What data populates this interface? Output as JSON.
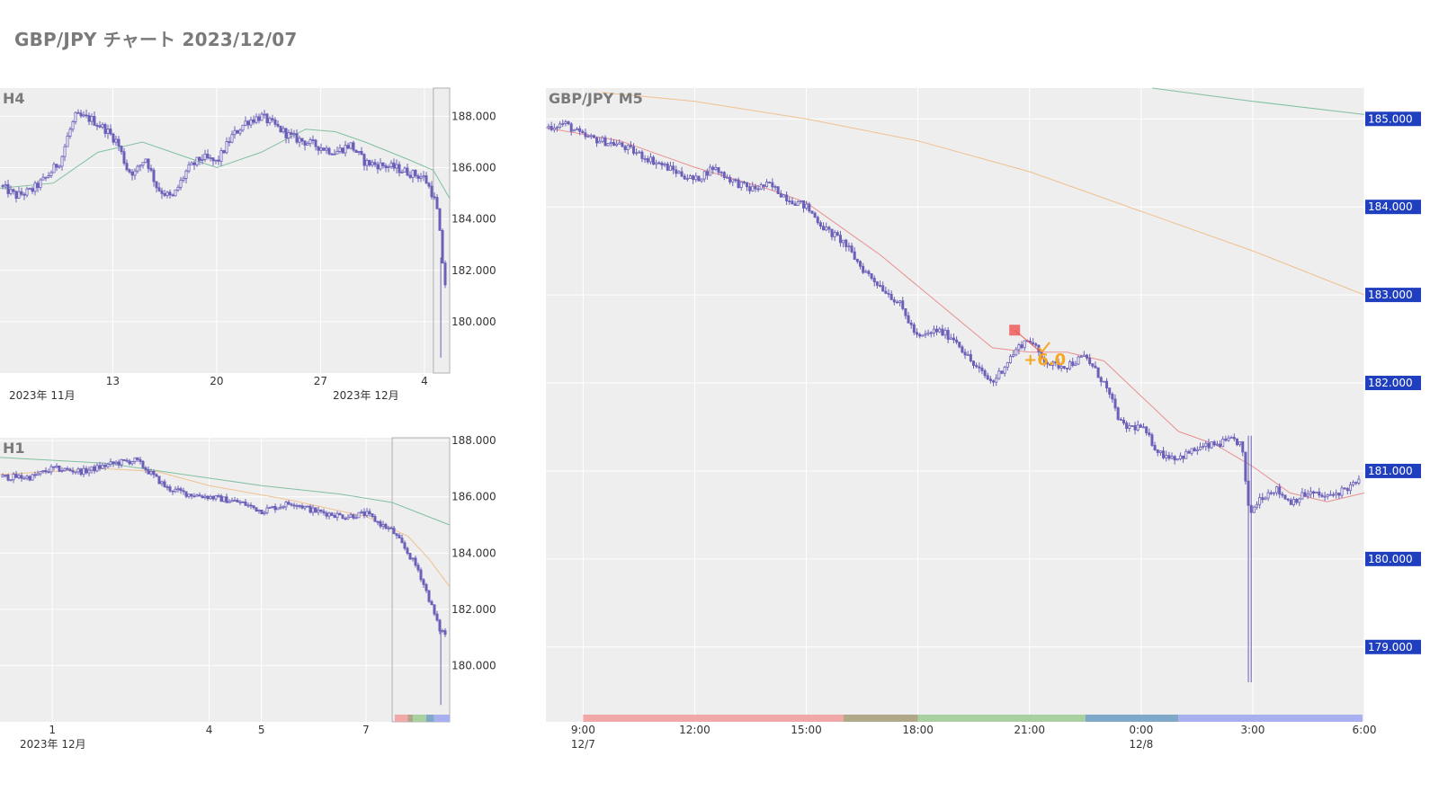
{
  "title": "GBP/JPY チャート 2023/12/07",
  "colors": {
    "candle": "#6a60b8",
    "plot_bg": "#eeeeee",
    "ma_fast": "#e89090",
    "ma_mid": "#f0c090",
    "ma_slow": "#80c0a0",
    "price_label_bg": "#1f3fbf",
    "pnl": "#f5a623",
    "entry": "#ee5a5a"
  },
  "chart_data": [
    {
      "id": "h4",
      "type": "candlestick",
      "panel_label": "H4",
      "y_ticks": [
        "188.000",
        "186.000",
        "184.000",
        "182.000",
        "180.000"
      ],
      "y_tick_values": [
        188,
        186,
        184,
        182,
        180
      ],
      "ylim": [
        178.0,
        189.1
      ],
      "x_ticks": [
        "13",
        "20",
        "27",
        "4"
      ],
      "x_subticks": [
        "2023年 11月",
        "2023年 12月"
      ],
      "x_tick_days": [
        13,
        20,
        27,
        34
      ],
      "xlim_days": [
        5.4,
        35.7
      ],
      "highlight_days": [
        34.6,
        35.7
      ],
      "close_path": [
        [
          5.4,
          185.3
        ],
        [
          6.5,
          184.9
        ],
        [
          7.5,
          185.1
        ],
        [
          8.5,
          185.6
        ],
        [
          9.5,
          186.3
        ],
        [
          10.0,
          187.3
        ],
        [
          10.5,
          188.0
        ],
        [
          11.5,
          187.9
        ],
        [
          12.5,
          187.5
        ],
        [
          13.3,
          187.0
        ],
        [
          14.0,
          185.9
        ],
        [
          14.5,
          185.8
        ],
        [
          15.2,
          186.4
        ],
        [
          16.0,
          185.2
        ],
        [
          17.0,
          184.8
        ],
        [
          18.0,
          185.9
        ],
        [
          19.0,
          186.4
        ],
        [
          20.0,
          186.2
        ],
        [
          21.0,
          187.2
        ],
        [
          22.0,
          187.8
        ],
        [
          23.0,
          188.0
        ],
        [
          24.0,
          187.6
        ],
        [
          25.0,
          187.2
        ],
        [
          26.0,
          187.0
        ],
        [
          27.0,
          186.8
        ],
        [
          28.0,
          186.6
        ],
        [
          29.0,
          186.9
        ],
        [
          30.0,
          186.2
        ],
        [
          31.0,
          186.1
        ],
        [
          32.0,
          186.0
        ],
        [
          33.0,
          185.8
        ],
        [
          34.0,
          185.6
        ],
        [
          34.6,
          184.9
        ],
        [
          34.9,
          184.2
        ],
        [
          35.2,
          182.4
        ],
        [
          35.5,
          181.0
        ],
        [
          35.7,
          181.2
        ]
      ],
      "ma_slow": [
        [
          5.4,
          185.2
        ],
        [
          9.0,
          185.4
        ],
        [
          12.0,
          186.6
        ],
        [
          15.0,
          187.0
        ],
        [
          18.0,
          186.4
        ],
        [
          20.0,
          186.0
        ],
        [
          23.0,
          186.6
        ],
        [
          26.0,
          187.5
        ],
        [
          28.0,
          187.4
        ],
        [
          30.0,
          187.0
        ],
        [
          33.0,
          186.3
        ],
        [
          34.6,
          185.9
        ],
        [
          35.7,
          184.8
        ]
      ]
    },
    {
      "id": "h1",
      "type": "candlestick",
      "panel_label": "H1",
      "y_ticks": [
        "188.000",
        "186.000",
        "184.000",
        "182.000",
        "180.000"
      ],
      "y_tick_values": [
        188,
        186,
        184,
        182,
        180
      ],
      "ylim": [
        178.0,
        188.1
      ],
      "x_ticks": [
        "1",
        "4",
        "5",
        "7"
      ],
      "x_subticks": [
        "2023年 12月"
      ],
      "x_tick_days": [
        1,
        4,
        5,
        7
      ],
      "xlim_days": [
        0.0,
        8.6
      ],
      "highlight_days": [
        7.5,
        8.6
      ],
      "close_path": [
        [
          0.0,
          186.7
        ],
        [
          0.6,
          186.7
        ],
        [
          1.0,
          187.0
        ],
        [
          1.6,
          186.9
        ],
        [
          2.2,
          187.2
        ],
        [
          2.6,
          187.3
        ],
        [
          3.2,
          186.3
        ],
        [
          3.6,
          186.1
        ],
        [
          4.0,
          186.0
        ],
        [
          4.6,
          185.8
        ],
        [
          5.0,
          185.5
        ],
        [
          5.6,
          185.8
        ],
        [
          6.0,
          185.5
        ],
        [
          6.6,
          185.3
        ],
        [
          7.0,
          185.4
        ],
        [
          7.3,
          185.0
        ],
        [
          7.5,
          184.8
        ],
        [
          7.8,
          184.0
        ],
        [
          8.0,
          183.4
        ],
        [
          8.2,
          182.4
        ],
        [
          8.4,
          181.3
        ],
        [
          8.6,
          181.0
        ]
      ],
      "ma_slow": [
        [
          0.0,
          187.4
        ],
        [
          2.0,
          187.2
        ],
        [
          3.5,
          186.8
        ],
        [
          5.0,
          186.4
        ],
        [
          6.5,
          186.1
        ],
        [
          7.5,
          185.8
        ],
        [
          8.6,
          185.0
        ]
      ],
      "ma_mid": [
        [
          0.0,
          186.8
        ],
        [
          2.0,
          187.0
        ],
        [
          3.0,
          186.9
        ],
        [
          4.0,
          186.4
        ],
        [
          5.5,
          185.9
        ],
        [
          7.0,
          185.3
        ],
        [
          7.8,
          184.6
        ],
        [
          8.2,
          183.8
        ],
        [
          8.6,
          182.8
        ]
      ],
      "session_bands": [
        {
          "from": 7.55,
          "to": 7.8,
          "color": "#f0a8a8"
        },
        {
          "from": 7.8,
          "to": 7.9,
          "color": "#b0a888"
        },
        {
          "from": 7.9,
          "to": 8.15,
          "color": "#a8d0a0"
        },
        {
          "from": 8.15,
          "to": 8.3,
          "color": "#80a8c8"
        },
        {
          "from": 8.3,
          "to": 8.6,
          "color": "#a8b0f0"
        }
      ]
    },
    {
      "id": "m5",
      "type": "candlestick",
      "panel_label": "GBP/JPY M5",
      "y_ticks": [
        "185.000",
        "184.000",
        "183.000",
        "182.000",
        "181.000",
        "180.000",
        "179.000"
      ],
      "y_tick_values": [
        185,
        184,
        183,
        182,
        181,
        180,
        179
      ],
      "ylim": [
        178.15,
        185.35
      ],
      "x_ticks": [
        "9:00",
        "12:00",
        "15:00",
        "18:00",
        "21:00",
        "0:00",
        "3:00",
        "6:00"
      ],
      "x_subticks": [
        "12/7",
        "12/8"
      ],
      "x_tick_hours": [
        9,
        12,
        15,
        18,
        21,
        24,
        27,
        30
      ],
      "xlim_hours": [
        8.0,
        30.0
      ],
      "close_path": [
        [
          8.0,
          184.9
        ],
        [
          8.5,
          184.95
        ],
        [
          9.0,
          184.8
        ],
        [
          10.0,
          184.7
        ],
        [
          11.0,
          184.5
        ],
        [
          11.5,
          184.4
        ],
        [
          12.0,
          184.3
        ],
        [
          12.5,
          184.45
        ],
        [
          13.0,
          184.3
        ],
        [
          13.5,
          184.2
        ],
        [
          14.0,
          184.25
        ],
        [
          14.5,
          184.1
        ],
        [
          15.0,
          184.0
        ],
        [
          15.5,
          183.75
        ],
        [
          16.0,
          183.6
        ],
        [
          16.5,
          183.3
        ],
        [
          17.0,
          183.1
        ],
        [
          17.5,
          182.9
        ],
        [
          18.0,
          182.5
        ],
        [
          18.5,
          182.6
        ],
        [
          19.0,
          182.5
        ],
        [
          19.5,
          182.2
        ],
        [
          20.0,
          182.0
        ],
        [
          20.5,
          182.3
        ],
        [
          20.8,
          182.45
        ],
        [
          21.0,
          182.5
        ],
        [
          21.3,
          182.3
        ],
        [
          21.6,
          182.2
        ],
        [
          22.0,
          182.2
        ],
        [
          22.5,
          182.3
        ],
        [
          23.0,
          182.0
        ],
        [
          23.5,
          181.5
        ],
        [
          24.0,
          181.5
        ],
        [
          24.5,
          181.2
        ],
        [
          25.0,
          181.15
        ],
        [
          25.5,
          181.25
        ],
        [
          26.0,
          181.3
        ],
        [
          26.5,
          181.35
        ],
        [
          26.7,
          181.3
        ],
        [
          26.9,
          180.5
        ],
        [
          27.2,
          180.7
        ],
        [
          27.6,
          180.8
        ],
        [
          28.0,
          180.65
        ],
        [
          28.5,
          180.75
        ],
        [
          29.0,
          180.7
        ],
        [
          29.5,
          180.8
        ],
        [
          30.0,
          180.9
        ]
      ],
      "ma_fast": [
        [
          8.0,
          184.9
        ],
        [
          10.0,
          184.75
        ],
        [
          12.0,
          184.45
        ],
        [
          14.0,
          184.2
        ],
        [
          15.0,
          184.05
        ],
        [
          16.0,
          183.75
        ],
        [
          17.0,
          183.45
        ],
        [
          18.0,
          183.1
        ],
        [
          19.0,
          182.75
        ],
        [
          20.0,
          182.4
        ],
        [
          21.0,
          182.35
        ],
        [
          22.0,
          182.35
        ],
        [
          23.0,
          182.25
        ],
        [
          24.0,
          181.85
        ],
        [
          25.0,
          181.45
        ],
        [
          26.0,
          181.3
        ],
        [
          27.0,
          181.05
        ],
        [
          28.0,
          180.75
        ],
        [
          29.0,
          180.65
        ],
        [
          30.0,
          180.75
        ]
      ],
      "ma_mid": [
        [
          9.5,
          185.3
        ],
        [
          12.0,
          185.2
        ],
        [
          15.0,
          185.0
        ],
        [
          18.0,
          184.75
        ],
        [
          21.0,
          184.4
        ],
        [
          24.0,
          183.95
        ],
        [
          27.0,
          183.5
        ],
        [
          30.0,
          183.0
        ]
      ],
      "ma_slow": [
        [
          24.3,
          185.35
        ],
        [
          27.0,
          185.2
        ],
        [
          30.0,
          185.05
        ]
      ],
      "wick_spike": {
        "hour": 26.9,
        "low": 178.6,
        "high": 181.4
      },
      "trade": {
        "entry_hour": 20.6,
        "entry_price": 182.6,
        "exit_hour": 21.3,
        "exit_price": 182.35,
        "pnl_label": "+6.0"
      },
      "session_bands": [
        {
          "from": 9.0,
          "to": 16.0,
          "color": "#f0a8a8"
        },
        {
          "from": 16.0,
          "to": 18.0,
          "color": "#b0a888"
        },
        {
          "from": 18.0,
          "to": 22.5,
          "color": "#a8d0a0"
        },
        {
          "from": 22.5,
          "to": 25.0,
          "color": "#80a8c8"
        },
        {
          "from": 25.0,
          "to": 29.95,
          "color": "#a8b0f0"
        }
      ]
    }
  ]
}
